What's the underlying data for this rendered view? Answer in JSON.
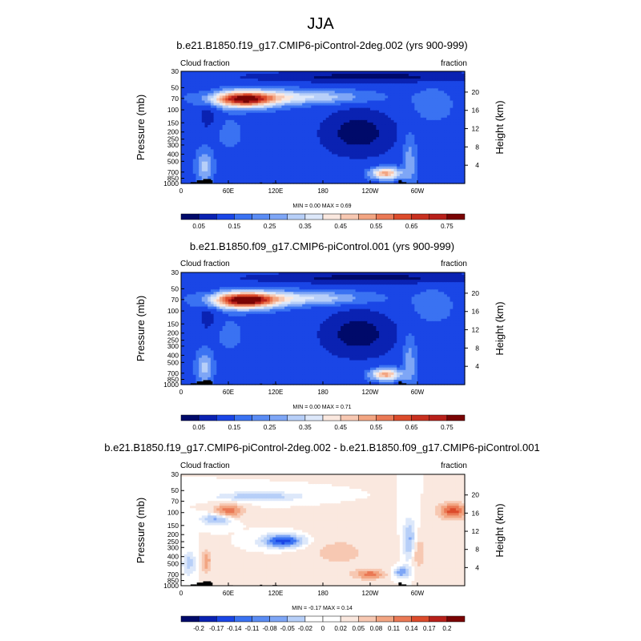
{
  "figure": {
    "title": "JJA"
  },
  "colors": {
    "levels10": [
      "#000a6a",
      "#0a22b2",
      "#1a46e6",
      "#3a72f2",
      "#7ea6f6",
      "#b7cff8",
      "#dde8fa",
      "#fae8df",
      "#f7c8b2",
      "#f2a582",
      "#ea7955",
      "#dc4b2b",
      "#b8201a",
      "#7a0404"
    ],
    "diff": [
      "#000a6a",
      "#0a22b2",
      "#1a46e6",
      "#3a72f2",
      "#7ea6f6",
      "#b7cff8",
      "#dde8fa",
      "#ffffff",
      "#fae8df",
      "#f7c8b2",
      "#f2a582",
      "#ea7955",
      "#dc4b2b",
      "#b8201a",
      "#7a0404"
    ],
    "terrain": "#000000",
    "frame": "#000000"
  },
  "chart_data": [
    {
      "type": "heatmap",
      "title": "b.e21.B1850.f19_g17.CMIP6-piControl-2deg.002 (yrs 900-999)",
      "left_label": "Cloud fraction",
      "right_label": "fraction",
      "ylabel": "Pressure (mb)",
      "ylabel_right": "Height (km)",
      "xticks": [
        "0",
        "60E",
        "120E",
        "180",
        "120W",
        "60W"
      ],
      "yticks": [
        "1000",
        "850",
        "700",
        "500",
        "400",
        "300",
        "250",
        "200",
        "150",
        "100",
        "70",
        "50",
        "30"
      ],
      "yticks_right": [
        "4",
        "8",
        "12",
        "16",
        "20"
      ],
      "stats": "MIN =   0.00  MAX =   0.69",
      "min": 0.0,
      "max": 0.69,
      "colorbar": {
        "labels": [
          "0.05",
          "0.15",
          "0.25",
          "0.35",
          "0.45",
          "0.55",
          "0.65",
          "0.75"
        ]
      }
    },
    {
      "type": "heatmap",
      "title": "b.e21.B1850.f09_g17.CMIP6-piControl.001 (yrs 900-999)",
      "left_label": "Cloud fraction",
      "right_label": "fraction",
      "ylabel": "Pressure (mb)",
      "ylabel_right": "Height (km)",
      "xticks": [
        "0",
        "60E",
        "120E",
        "180",
        "120W",
        "60W"
      ],
      "yticks": [
        "1000",
        "850",
        "700",
        "500",
        "400",
        "300",
        "250",
        "200",
        "150",
        "100",
        "70",
        "50",
        "30"
      ],
      "yticks_right": [
        "4",
        "8",
        "12",
        "16",
        "20"
      ],
      "stats": "MIN =   0.00  MAX =   0.71",
      "min": 0.0,
      "max": 0.71,
      "colorbar": {
        "labels": [
          "0.05",
          "0.15",
          "0.25",
          "0.35",
          "0.45",
          "0.55",
          "0.65",
          "0.75"
        ]
      }
    },
    {
      "type": "heatmap",
      "title": "b.e21.B1850.f19_g17.CMIP6-piControl-2deg.002 - b.e21.B1850.f09_g17.CMIP6-piControl.001",
      "left_label": "Cloud fraction",
      "right_label": "fraction",
      "ylabel": "Pressure (mb)",
      "ylabel_right": "Height (km)",
      "xticks": [
        "0",
        "60E",
        "120E",
        "180",
        "120W",
        "60W"
      ],
      "yticks": [
        "1000",
        "850",
        "700",
        "500",
        "400",
        "300",
        "250",
        "200",
        "150",
        "100",
        "70",
        "50",
        "30"
      ],
      "yticks_right": [
        "4",
        "8",
        "12",
        "16",
        "20"
      ],
      "stats": "MIN =  -0.17  MAX =   0.14",
      "min": -0.17,
      "max": 0.14,
      "colorbar": {
        "labels": [
          "-0.2",
          "-0.17",
          "-0.14",
          "-0.11",
          "-0.08",
          "-0.05",
          "-0.02",
          "0",
          "0.02",
          "0.05",
          "0.08",
          "0.11",
          "0.14",
          "0.17",
          "0.2"
        ]
      }
    }
  ]
}
